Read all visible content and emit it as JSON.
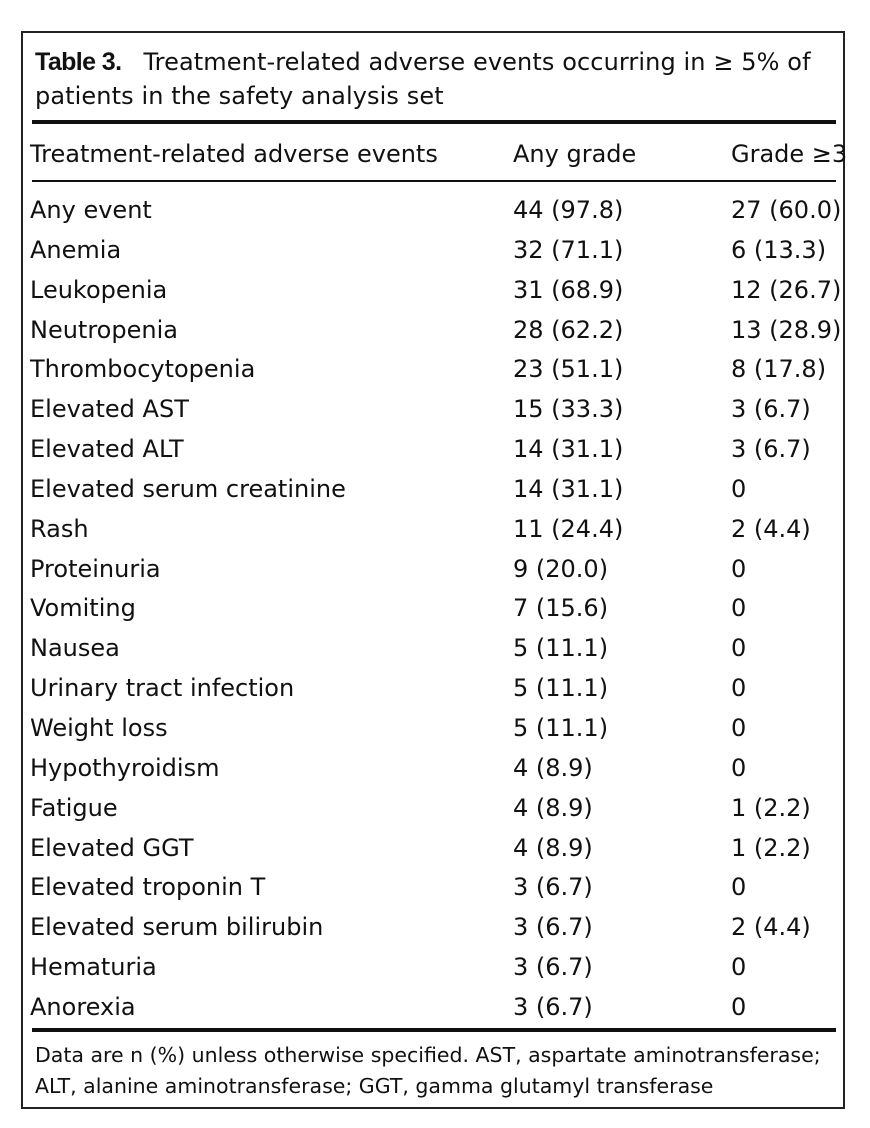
{
  "caption": {
    "label": "Table 3.",
    "text": "Treatment-related adverse events occurring in ≥ 5% of patients in the safety analysis set"
  },
  "columns": {
    "event": "Treatment-related adverse events",
    "any_grade": "Any grade",
    "grade3": "Grade ≥3"
  },
  "rows": [
    {
      "event": "Any event",
      "any_grade": "44 (97.8)",
      "grade3": "27 (60.0)"
    },
    {
      "event": "Anemia",
      "any_grade": "32 (71.1)",
      "grade3": "6 (13.3)"
    },
    {
      "event": "Leukopenia",
      "any_grade": "31 (68.9)",
      "grade3": "12 (26.7)"
    },
    {
      "event": "Neutropenia",
      "any_grade": "28 (62.2)",
      "grade3": "13 (28.9)"
    },
    {
      "event": "Thrombocytopenia",
      "any_grade": "23 (51.1)",
      "grade3": "8 (17.8)"
    },
    {
      "event": "Elevated AST",
      "any_grade": "15 (33.3)",
      "grade3": "3 (6.7)"
    },
    {
      "event": "Elevated ALT",
      "any_grade": "14 (31.1)",
      "grade3": "3 (6.7)"
    },
    {
      "event": "Elevated serum creatinine",
      "any_grade": "14 (31.1)",
      "grade3": "0"
    },
    {
      "event": "Rash",
      "any_grade": "11 (24.4)",
      "grade3": "2 (4.4)"
    },
    {
      "event": "Proteinuria",
      "any_grade": "9 (20.0)",
      "grade3": "0"
    },
    {
      "event": "Vomiting",
      "any_grade": "7 (15.6)",
      "grade3": "0"
    },
    {
      "event": "Nausea",
      "any_grade": "5 (11.1)",
      "grade3": "0"
    },
    {
      "event": "Urinary tract infection",
      "any_grade": "5 (11.1)",
      "grade3": "0"
    },
    {
      "event": "Weight loss",
      "any_grade": "5 (11.1)",
      "grade3": "0"
    },
    {
      "event": "Hypothyroidism",
      "any_grade": "4 (8.9)",
      "grade3": "0"
    },
    {
      "event": "Fatigue",
      "any_grade": "4 (8.9)",
      "grade3": "1 (2.2)"
    },
    {
      "event": "Elevated GGT",
      "any_grade": "4 (8.9)",
      "grade3": "1 (2.2)"
    },
    {
      "event": "Elevated troponin T",
      "any_grade": "3 (6.7)",
      "grade3": "0"
    },
    {
      "event": "Elevated serum bilirubin",
      "any_grade": "3 (6.7)",
      "grade3": "2 (4.4)"
    },
    {
      "event": "Hematuria",
      "any_grade": "3 (6.7)",
      "grade3": "0"
    },
    {
      "event": "Anorexia",
      "any_grade": "3 (6.7)",
      "grade3": "0"
    }
  ],
  "footnote": "Data are n (%) unless otherwise specified. AST, aspartate aminotransferase; ALT, alanine aminotransferase; GGT, gamma glutamyl transferase"
}
